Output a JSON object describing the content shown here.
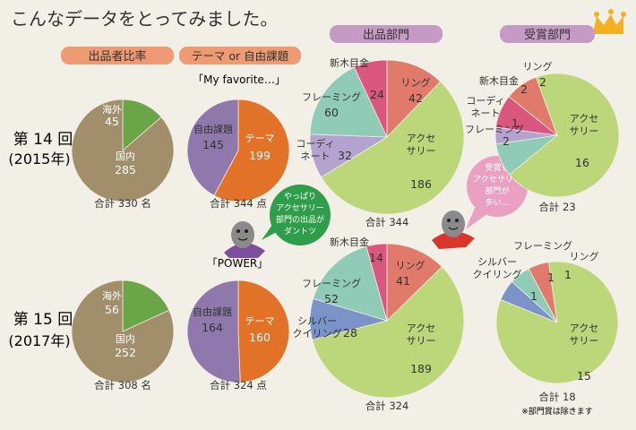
{
  "title": "こんなデータをとってみました。",
  "headers": {
    "ratio": "出品者比率",
    "theme": "テーマ or 自由課題",
    "entries": "出品部門",
    "awards": "受賞部門"
  },
  "rows": [
    {
      "edition": "第 14 回",
      "year": "(2015年)"
    },
    {
      "edition": "第 15 回",
      "year": "(2017年)"
    }
  ],
  "theme_names": [
    "「My favorite…」",
    "「POWER」"
  ],
  "bubbles": {
    "green": [
      "やっぱり",
      "アクセサリー",
      "部門の出品が",
      "ダントツ"
    ],
    "pink": [
      "受賞も",
      "アクセサリー",
      "部門が",
      "多い…"
    ]
  },
  "note": "※部門賞は除きます",
  "colors": {
    "overseas": "#6aa647",
    "domestic": "#a18f6c",
    "free": "#8f78ab",
    "theme": "#e27227",
    "shinki": "#d9577f",
    "ring": "#e07a6a",
    "framing": "#8fcbb7",
    "coordinate": "#b4a2cf",
    "accessory": "#bcd67a",
    "silver": "#7b93c8"
  },
  "chart_data": [
    {
      "type": "pie",
      "title": "出品者比率 第14回",
      "slices": [
        {
          "label": "海外",
          "value": 45
        },
        {
          "label": "国内",
          "value": 285
        }
      ],
      "total": "合計 330 名"
    },
    {
      "type": "pie",
      "title": "テーマ or 自由課題 第14回",
      "slices": [
        {
          "label": "テーマ",
          "value": 199
        },
        {
          "label": "自由課題",
          "value": 145
        }
      ],
      "total": "合計 344 点"
    },
    {
      "type": "pie",
      "title": "出品部門 第14回",
      "slices": [
        {
          "label": "リング",
          "value": 42
        },
        {
          "label": "アクセサリー",
          "value": 186
        },
        {
          "label": "コーディネート",
          "value": 32
        },
        {
          "label": "フレーミング",
          "value": 60
        },
        {
          "label": "新木目金",
          "value": 24
        }
      ],
      "total": "合計 344"
    },
    {
      "type": "pie",
      "title": "受賞部門 第14回",
      "slices": [
        {
          "label": "アクセサリー",
          "value": 16
        },
        {
          "label": "フレーミング",
          "value": 2
        },
        {
          "label": "コーディネート",
          "value": 1
        },
        {
          "label": "新木目金",
          "value": 2
        },
        {
          "label": "リング",
          "value": 2
        }
      ],
      "total": "合計 23"
    },
    {
      "type": "pie",
      "title": "出品者比率 第15回",
      "slices": [
        {
          "label": "海外",
          "value": 56
        },
        {
          "label": "国内",
          "value": 252
        }
      ],
      "total": "合計 308 名"
    },
    {
      "type": "pie",
      "title": "テーマ or 自由課題 第15回",
      "slices": [
        {
          "label": "テーマ",
          "value": 160
        },
        {
          "label": "自由課題",
          "value": 164
        }
      ],
      "total": "合計 324 点"
    },
    {
      "type": "pie",
      "title": "出品部門 第15回",
      "slices": [
        {
          "label": "リング",
          "value": 41
        },
        {
          "label": "アクセサリー",
          "value": 189
        },
        {
          "label": "シルバークイリング",
          "value": 28
        },
        {
          "label": "フレーミング",
          "value": 52
        },
        {
          "label": "新木目金",
          "value": 14
        }
      ],
      "total": "合計 324"
    },
    {
      "type": "pie",
      "title": "受賞部門 第15回",
      "slices": [
        {
          "label": "リング",
          "value": 1
        },
        {
          "label": "アクセサリー",
          "value": 15
        },
        {
          "label": "シルバークイリング",
          "value": 1
        },
        {
          "label": "フレーミング",
          "value": 1
        }
      ],
      "total": "合計 18"
    }
  ]
}
